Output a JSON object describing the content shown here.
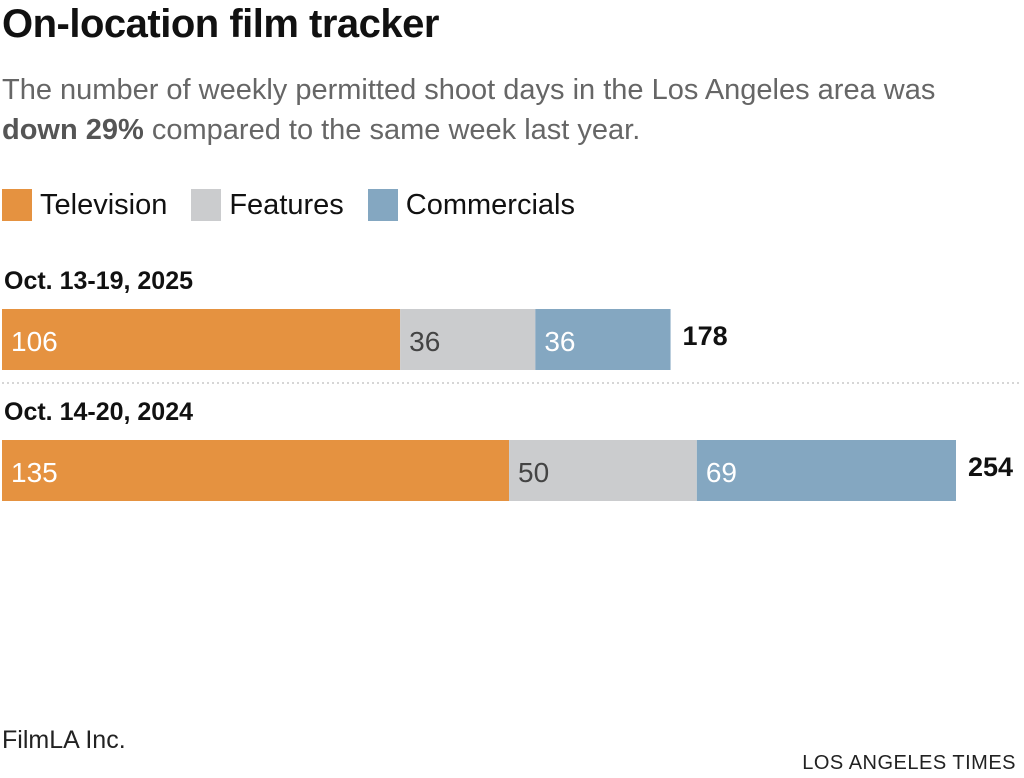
{
  "header": {
    "title": "On-location film tracker",
    "subtitle_pre": "The number of weekly permitted shoot days in the Los Angeles area was ",
    "subtitle_bold": "down 29%",
    "subtitle_post": " compared to the same week last year."
  },
  "legend": [
    {
      "label": "Television",
      "color": "#e59240"
    },
    {
      "label": "Features",
      "color": "#cbccce"
    },
    {
      "label": "Commercials",
      "color": "#84a7c1"
    }
  ],
  "chart_data": {
    "type": "bar",
    "orientation": "horizontal",
    "stacked": true,
    "categories": [
      "Oct. 13-19, 2025",
      "Oct. 14-20, 2024"
    ],
    "series": [
      {
        "name": "Television",
        "values": [
          106,
          135
        ],
        "color": "#e59240"
      },
      {
        "name": "Features",
        "values": [
          36,
          50
        ],
        "color": "#cbccce"
      },
      {
        "name": "Commercials",
        "values": [
          36,
          69
        ],
        "color": "#84a7c1"
      }
    ],
    "totals": [
      178,
      254
    ],
    "xlim": [
      0,
      254
    ]
  },
  "footer": {
    "source": "FilmLA Inc.",
    "credit": "LOS ANGELES TIMES"
  }
}
